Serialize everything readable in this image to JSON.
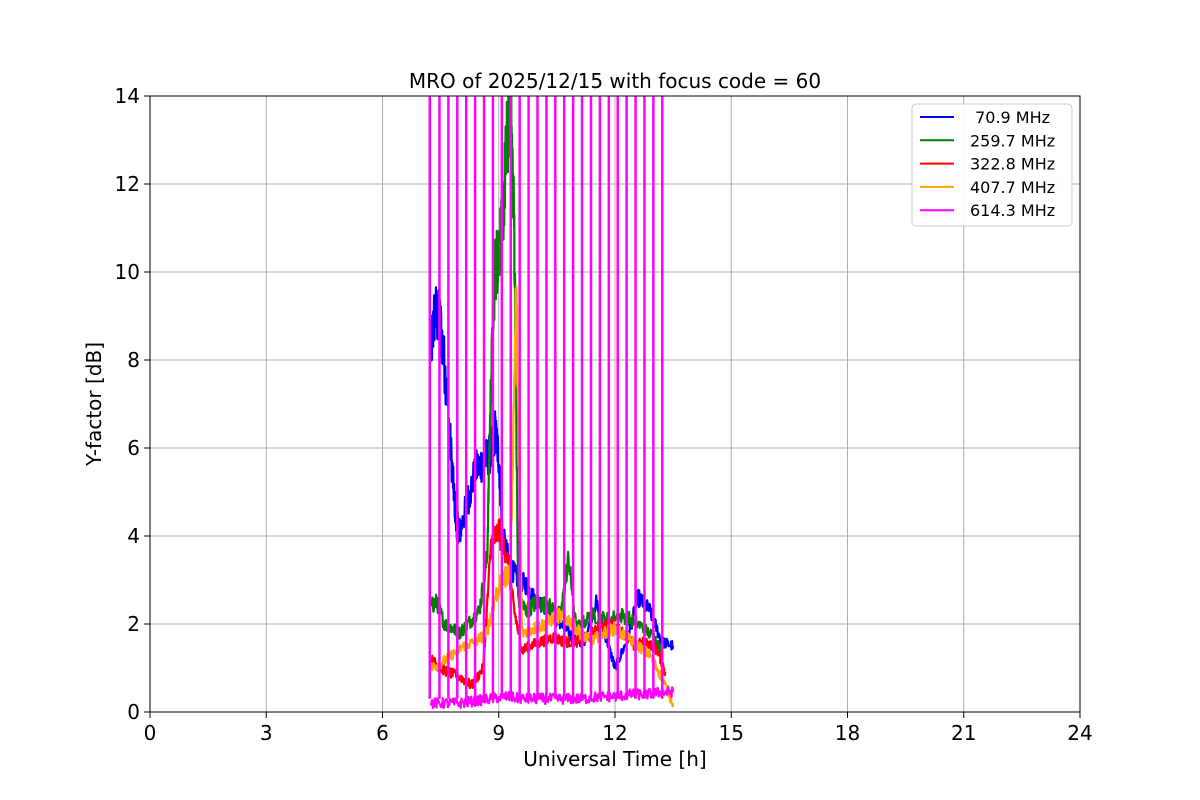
{
  "chart_data": {
    "type": "line",
    "title": "MRO of 2025/12/15 with focus code = 60",
    "xlabel": "Universal Time [h]",
    "ylabel": "Y-factor [dB]",
    "xlim": [
      0,
      24
    ],
    "ylim": [
      0,
      14
    ],
    "xticks": [
      0,
      3,
      6,
      9,
      12,
      15,
      18,
      21,
      24
    ],
    "yticks": [
      0,
      2,
      4,
      6,
      8,
      10,
      12,
      14
    ],
    "grid": true,
    "legend_position": "top-right",
    "series": [
      {
        "name": "70.9 MHz",
        "legend_label": " 70.9 MHz",
        "color": "#0000ff",
        "x": [
          7.25,
          7.35,
          7.5,
          7.65,
          7.8,
          7.9,
          8.0,
          8.2,
          8.4,
          8.6,
          8.8,
          8.9,
          9.0,
          9.1,
          9.3,
          9.5,
          9.7,
          9.9,
          10.2,
          10.5,
          10.8,
          11.0,
          11.2,
          11.5,
          11.8,
          12.0,
          12.3,
          12.6,
          12.9,
          13.2,
          13.5
        ],
        "y": [
          8.2,
          9.1,
          8.8,
          7.4,
          5.5,
          4.3,
          4.1,
          4.8,
          5.5,
          5.7,
          5.9,
          6.4,
          5.8,
          4.0,
          3.3,
          3.0,
          2.9,
          2.6,
          2.4,
          2.1,
          1.8,
          1.6,
          1.6,
          2.5,
          1.6,
          1.0,
          1.6,
          2.6,
          2.3,
          1.6,
          1.5
        ]
      },
      {
        "name": "259.7 MHz",
        "legend_label": "259.7 MHz",
        "color": "#008000",
        "x": [
          7.25,
          7.4,
          7.6,
          7.8,
          8.0,
          8.2,
          8.5,
          8.7,
          8.8,
          8.9,
          9.0,
          9.1,
          9.2,
          9.3,
          9.4,
          9.5,
          9.7,
          10.0,
          10.3,
          10.6,
          10.8,
          11.0,
          11.4,
          11.8,
          12.2,
          12.6,
          13.0,
          13.2
        ],
        "y": [
          2.4,
          2.5,
          2.0,
          1.9,
          1.8,
          2.0,
          2.3,
          3.5,
          7.5,
          10.0,
          10.5,
          11.2,
          12.8,
          14.0,
          11.0,
          2.6,
          2.3,
          2.5,
          2.4,
          2.2,
          3.5,
          1.9,
          2.2,
          2.1,
          2.2,
          2.0,
          1.7,
          1.4
        ]
      },
      {
        "name": "322.8 MHz",
        "legend_label": "322.8 MHz",
        "color": "#ff0000",
        "x": [
          7.25,
          7.5,
          7.7,
          8.0,
          8.3,
          8.6,
          8.8,
          9.0,
          9.2,
          9.4,
          9.6,
          9.8,
          10.1,
          10.4,
          10.7,
          11.0,
          11.3,
          11.6,
          11.9,
          12.2,
          12.5,
          12.8,
          13.1,
          13.3
        ],
        "y": [
          1.2,
          1.0,
          0.9,
          0.8,
          0.6,
          1.0,
          3.8,
          4.1,
          3.6,
          2.3,
          1.4,
          1.5,
          1.6,
          1.7,
          1.6,
          1.6,
          1.7,
          1.9,
          2.0,
          1.8,
          1.5,
          1.6,
          1.4,
          0.9
        ]
      },
      {
        "name": "407.7 MHz",
        "legend_label": "407.7 MHz",
        "color": "#ffa500",
        "x": [
          7.25,
          7.5,
          7.8,
          8.1,
          8.4,
          8.7,
          8.9,
          9.1,
          9.3,
          9.45,
          9.6,
          9.9,
          10.2,
          10.5,
          10.8,
          11.1,
          11.4,
          11.7,
          12.0,
          12.3,
          12.6,
          12.9,
          13.2,
          13.5
        ],
        "y": [
          1.0,
          1.1,
          1.3,
          1.5,
          1.6,
          1.8,
          2.6,
          3.0,
          3.2,
          9.6,
          1.8,
          1.9,
          2.0,
          2.2,
          2.1,
          1.8,
          1.6,
          1.8,
          1.9,
          1.7,
          1.5,
          1.3,
          0.8,
          0.2
        ]
      },
      {
        "name": "614.3 MHz",
        "legend_label": "614.3 MHz",
        "color": "#ff00ff",
        "x": [
          7.25,
          7.6,
          8.0,
          8.4,
          8.8,
          9.2,
          9.6,
          10.0,
          10.4,
          10.8,
          11.2,
          11.6,
          12.0,
          12.4,
          12.8,
          13.2,
          13.5
        ],
        "y": [
          0.2,
          0.2,
          0.2,
          0.25,
          0.3,
          0.35,
          0.3,
          0.3,
          0.3,
          0.3,
          0.3,
          0.35,
          0.35,
          0.4,
          0.4,
          0.45,
          0.45
        ],
        "spike_times": [
          7.22,
          7.47,
          7.7,
          7.93,
          8.16,
          8.39,
          8.62,
          8.85,
          9.08,
          9.31,
          9.54,
          9.77,
          10.0,
          10.23,
          10.46,
          10.69,
          10.92,
          11.15,
          11.38,
          11.61,
          11.84,
          12.07,
          12.3,
          12.53,
          12.76,
          12.99,
          13.22
        ]
      }
    ]
  }
}
